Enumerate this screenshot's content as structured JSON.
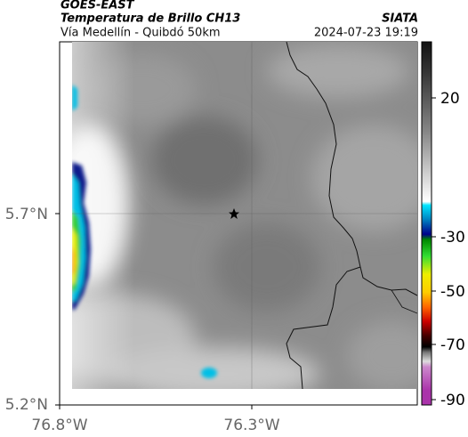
{
  "header": {
    "title": "GOES-EAST",
    "subtitle": "Temperatura de Brillo CH13",
    "source": "SIATA",
    "region": "Vía Medellín - Quibdó 50km",
    "timestamp": "2024-07-23 19:19"
  },
  "axes": {
    "lat_labels": [
      "5.7°N",
      "5.2°N"
    ],
    "lon_labels": [
      "76.8°W",
      "76.3°W"
    ]
  },
  "colorbar": {
    "tick_labels": [
      "20",
      "-30",
      "-50",
      "-70",
      "-90"
    ]
  }
}
